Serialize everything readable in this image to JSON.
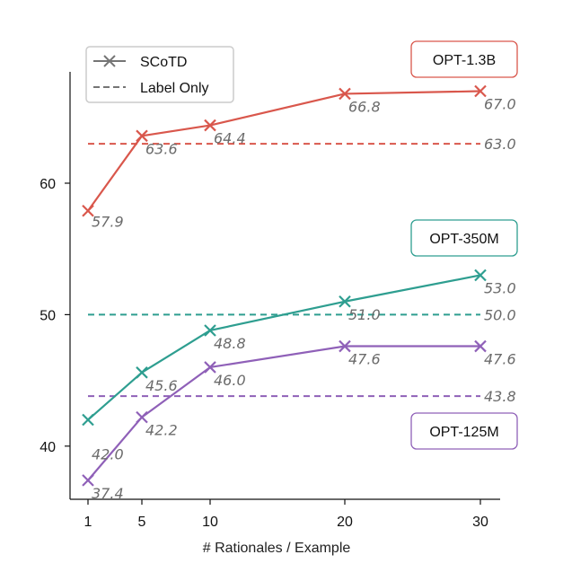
{
  "chart_data": {
    "type": "line",
    "xlabel": "# Rationales / Example",
    "ylabel": "",
    "x": [
      1,
      5,
      10,
      20,
      30
    ],
    "x_tick_labels": [
      "1",
      "5",
      "10",
      "20",
      "30"
    ],
    "y_ticks": [
      40,
      50,
      60
    ],
    "y_tick_labels": [
      "40",
      "50",
      "60"
    ],
    "ylim": [
      36,
      68.5
    ],
    "grid": false,
    "legend": {
      "placement": "top-left",
      "entries": [
        {
          "label": "SCoTD",
          "style": "solid-x"
        },
        {
          "label": "Label Only",
          "style": "dashed"
        }
      ]
    },
    "series": [
      {
        "name": "OPT-1.3B",
        "color": "#d9574c",
        "values": [
          57.9,
          63.6,
          64.4,
          66.8,
          67.0
        ],
        "labels": [
          "57.9",
          "63.6",
          "64.4",
          "66.8",
          "67.0"
        ],
        "baseline": 63.0,
        "baseline_label": "63.0"
      },
      {
        "name": "OPT-350M",
        "color": "#2e9e90",
        "values": [
          42.0,
          45.6,
          48.8,
          51.0,
          53.0
        ],
        "labels": [
          "42.0",
          "45.6",
          "48.8",
          "51.0",
          "53.0"
        ],
        "baseline": 50.0,
        "baseline_label": "50.0"
      },
      {
        "name": "OPT-125M",
        "color": "#8f60b8",
        "values": [
          37.4,
          42.2,
          46.0,
          47.6,
          47.6
        ],
        "labels": [
          "37.4",
          "42.2",
          "46.0",
          "47.6",
          "47.6"
        ],
        "baseline": 43.8,
        "baseline_label": "43.8"
      }
    ]
  }
}
